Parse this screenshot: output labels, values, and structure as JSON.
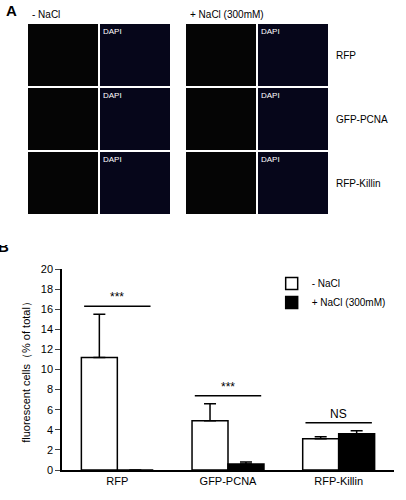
{
  "panel_a": {
    "label": "A",
    "columns": [
      "- NaCl",
      "+ NaCl (300mM)"
    ],
    "rows": [
      "RFP",
      "GFP-PCNA",
      "RFP-Killin"
    ],
    "stain": "DAPI"
  },
  "chart_data": {
    "type": "bar",
    "panel_label": "B",
    "y_label": "fluorescent cells（% of total）",
    "categories": [
      "RFP",
      "GFP-PCNA",
      "RFP-Killin"
    ],
    "series": [
      {
        "name": "- NaCl",
        "color": "#ffffff",
        "values": [
          11.2,
          4.9,
          3.1
        ],
        "errors": [
          4.3,
          1.7,
          0.2
        ]
      },
      {
        "name": "+ NaCl (300mM)",
        "color": "#000000",
        "values": [
          0,
          0.6,
          3.6
        ],
        "errors": [
          0,
          0.2,
          0.3
        ]
      }
    ],
    "annotations": [
      "***",
      "***",
      "NS"
    ],
    "ylim": [
      0,
      20
    ],
    "yticks": [
      0,
      2,
      4,
      6,
      8,
      10,
      12,
      14,
      16,
      18,
      20
    ],
    "grid": false,
    "legend": "upper right"
  }
}
